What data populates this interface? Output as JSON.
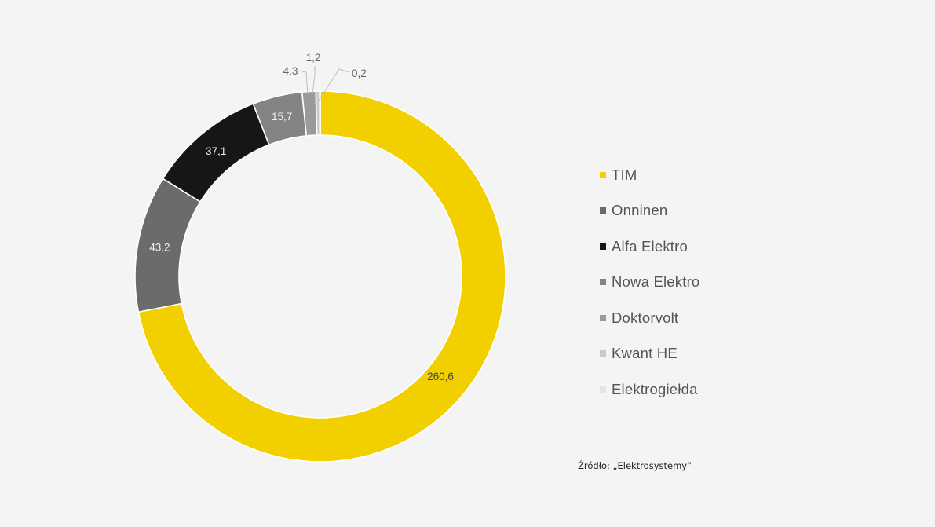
{
  "chart_data": {
    "type": "pie",
    "variant": "donut",
    "categories": [
      "TIM",
      "Onninen",
      "Alfa Elektro",
      "Nowa Elektro",
      "Doktorvolt",
      "Kwant HE",
      "Elektrogiełda"
    ],
    "values": [
      260.6,
      43.2,
      37.1,
      15.7,
      4.3,
      1.2,
      0.2
    ],
    "data_labels": [
      "260,6",
      "43,2",
      "37,1",
      "15,7",
      "4,3",
      "1,2",
      "0,2"
    ],
    "colors": [
      "#f2d000",
      "#6b6b6b",
      "#161616",
      "#838383",
      "#9a9a9a",
      "#c9c9c9",
      "#e4e4e4"
    ],
    "label_colors": [
      "#444444",
      "#f2f2f2",
      "#f2f2f2",
      "#f2f2f2",
      "#666666",
      "#666666",
      "#666666"
    ],
    "legend_position": "right",
    "start_angle": "12 o'clock, clockwise"
  },
  "legend": {
    "items": [
      {
        "label": "TIM",
        "color": "#f2d000"
      },
      {
        "label": "Onninen",
        "color": "#6b6b6b"
      },
      {
        "label": "Alfa Elektro",
        "color": "#161616"
      },
      {
        "label": "Nowa Elektro",
        "color": "#838383"
      },
      {
        "label": "Doktorvolt",
        "color": "#9a9a9a"
      },
      {
        "label": "Kwant HE",
        "color": "#c9c9c9"
      },
      {
        "label": "Elektrogiełda",
        "color": "#e4e4e4"
      }
    ]
  },
  "source_note": "Źródło: „Elektrosystemy”"
}
